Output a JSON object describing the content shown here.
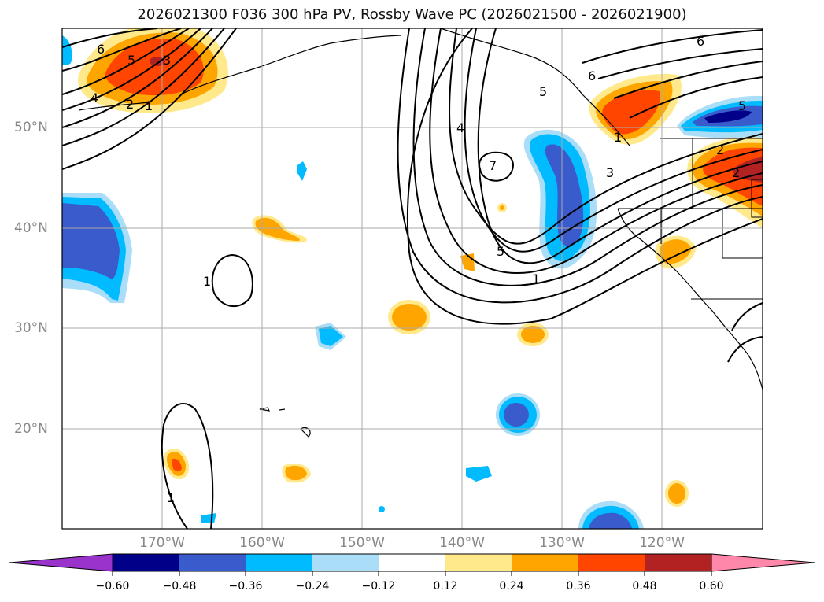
{
  "title": "2026021300 F036 300 hPa PV, Rossby Wave PC (2026021500 - 2026021900)",
  "lat_labels": [
    "50°N",
    "40°N",
    "30°N",
    "20°N"
  ],
  "lon_labels": [
    "170°W",
    "160°W",
    "150°W",
    "140°W",
    "130°W",
    "120°W"
  ],
  "colorbar": {
    "ticks": [
      "−0.60",
      "−0.48",
      "−0.36",
      "−0.24",
      "−0.12",
      "0.12",
      "0.24",
      "0.36",
      "0.48",
      "0.60"
    ],
    "colors": [
      "#9933cc",
      "#000088",
      "#3a5bcc",
      "#00bbff",
      "#aaddf8",
      "#ffffff",
      "#ffe98a",
      "#ffa500",
      "#ff4500",
      "#b22222",
      "#ff88aa"
    ]
  },
  "contour_labels": [
    "6",
    "5",
    "4",
    "3",
    "2",
    "1",
    "6",
    "5",
    "4",
    "3",
    "2",
    "1",
    "7",
    "5",
    "1",
    "1",
    "1",
    "6",
    "5",
    "2"
  ]
}
